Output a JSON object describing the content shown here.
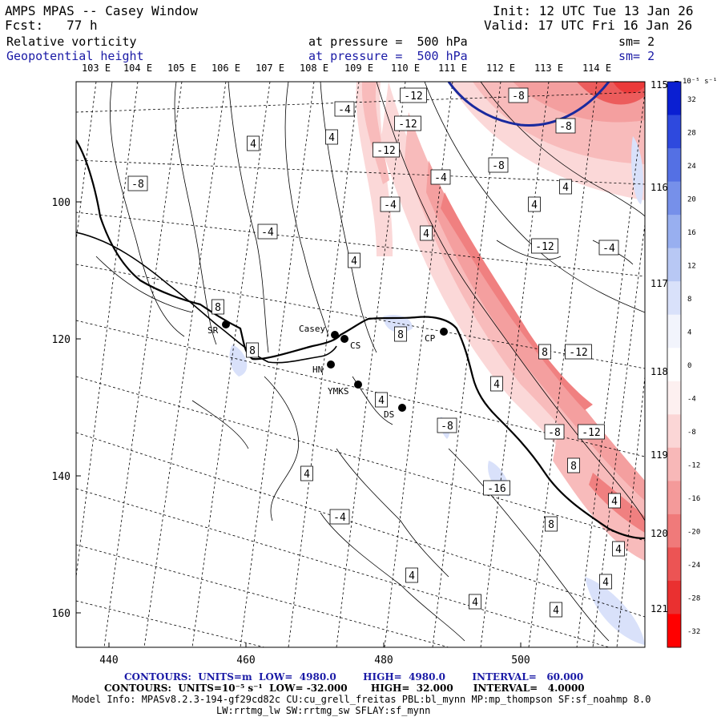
{
  "header": {
    "title": "AMPS MPAS -- Casey Window",
    "init": "Init: 12 UTC Tue 13 Jan 26",
    "fcst": "Fcst:   77 h",
    "valid": "Valid: 17 UTC Fri 16 Jan 26",
    "field1": {
      "name": "Relative vorticity",
      "pressure": "at pressure =  500 hPa",
      "sm": "sm= 2"
    },
    "field2": {
      "name": "Geopotential height",
      "pressure": "at pressure =  500 hPa",
      "sm": "sm= 2"
    }
  },
  "axes": {
    "top_lon": [
      "103 E",
      "104 E",
      "105 E",
      "106 E",
      "107 E",
      "108 E",
      "109 E",
      "110 E",
      "111 E",
      "112 E",
      "113 E",
      "114 E"
    ],
    "right_lon": [
      "115 E",
      "116 E",
      "117 E",
      "118 E",
      "119 E",
      "120 E",
      "121 E"
    ],
    "left_y": [
      "100",
      "120",
      "140",
      "160"
    ],
    "bottom_x": [
      "440",
      "460",
      "480",
      "500"
    ]
  },
  "stations": [
    {
      "label": "SR"
    },
    {
      "label": "Casey"
    },
    {
      "label": "CS"
    },
    {
      "label": "HN"
    },
    {
      "label": "YMKS"
    },
    {
      "label": "DS"
    },
    {
      "label": "CP"
    }
  ],
  "contour_labels": [
    "-4",
    "-12",
    "-8",
    "-12",
    "-8",
    "-12",
    "-8",
    "-4",
    "4",
    "4",
    "4",
    "4",
    "-8",
    "-4",
    "4",
    "-4",
    "4",
    "-12",
    "-4",
    "8",
    "8",
    "8",
    "4",
    "-8",
    "4",
    "8",
    "-12",
    "-8",
    "-12",
    "8",
    "-16",
    "4",
    "4",
    "-4",
    "8",
    "4",
    "4",
    "4",
    "4",
    "4"
  ],
  "colorbar": {
    "units": "10⁻⁵ s⁻¹",
    "ticks": [
      "32",
      "28",
      "24",
      "20",
      "16",
      "12",
      "8",
      "4",
      "0",
      "-4",
      "-8",
      "-12",
      "-16",
      "-20",
      "-24",
      "-28",
      "-32"
    ],
    "colors": [
      "#0a1fd2",
      "#2e49de",
      "#5470e4",
      "#7690ea",
      "#98aff0",
      "#b8c8f4",
      "#d9e1fa",
      "#f2f4fc",
      "#ffffff",
      "#fdf0f0",
      "#fbd6d6",
      "#f8b8b8",
      "#f49a9a",
      "#f07a7a",
      "#ec5454",
      "#ea3030",
      "#ff0000"
    ]
  },
  "footer": {
    "contours1": "CONTOURS:  UNITS=m  LOW=  4980.0        HIGH=  4980.0        INTERVAL=   60.000",
    "contours2": "CONTOURS:  UNITS=10⁻⁵ s⁻¹  LOW= -32.000       HIGH=  32.000      INTERVAL=   4.0000",
    "model1": "Model Info: MPASv8.2.3-194-gf29cd82c CU:cu_grell_freitas PBL:bl_mynn MP:mp_thompson SF:sf_noahmp 8.0",
    "model2": "LW:rrtmg_lw SW:rrtmg_sw SFLAY:sf_mynn"
  }
}
